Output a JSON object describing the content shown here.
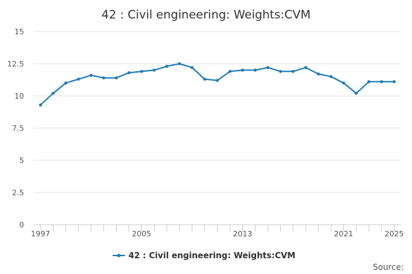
{
  "chart_data": {
    "type": "line",
    "title": "42 : Civil engineering: Weights:CVM",
    "xlabel": "",
    "ylabel": "",
    "xlim": [
      1997,
      2025
    ],
    "ylim": [
      0,
      15
    ],
    "y_ticks": [
      0,
      2.5,
      5,
      7.5,
      10,
      12.5,
      15
    ],
    "y_tick_labels": [
      "0",
      "2.5",
      "5",
      "7.5",
      "10",
      "12.5",
      "15"
    ],
    "x_ticks": [
      1997,
      2005,
      2013,
      2021,
      2025
    ],
    "x_tick_labels": [
      "1997",
      "2005",
      "2013",
      "2021",
      "2025"
    ],
    "x_minor_ticks": [
      1997,
      1998,
      1999,
      2000,
      2001,
      2002,
      2003,
      2004,
      2005,
      2006,
      2007,
      2008,
      2009,
      2010,
      2011,
      2012,
      2013,
      2014,
      2015,
      2016,
      2017,
      2018,
      2019,
      2020,
      2021,
      2022,
      2023,
      2024,
      2025
    ],
    "grid": "horizontal",
    "legend_position": "bottom",
    "series": [
      {
        "name": "42 : Civil engineering: Weights:CVM",
        "color": "#1f7ab3",
        "x": [
          1997,
          1998,
          1999,
          2000,
          2001,
          2002,
          2003,
          2004,
          2005,
          2006,
          2007,
          2008,
          2009,
          2010,
          2011,
          2012,
          2013,
          2014,
          2015,
          2016,
          2017,
          2018,
          2019,
          2020,
          2021,
          2022,
          2023,
          2024,
          2025
        ],
        "values": [
          9.3,
          10.2,
          11.0,
          11.3,
          11.6,
          11.4,
          11.4,
          11.8,
          11.9,
          12.0,
          12.3,
          12.5,
          12.2,
          11.3,
          11.2,
          11.9,
          12.0,
          12.0,
          12.2,
          11.9,
          11.9,
          12.2,
          11.7,
          11.5,
          11.0,
          10.2,
          11.1,
          11.1,
          11.1
        ]
      }
    ]
  },
  "source_label": "Source:"
}
